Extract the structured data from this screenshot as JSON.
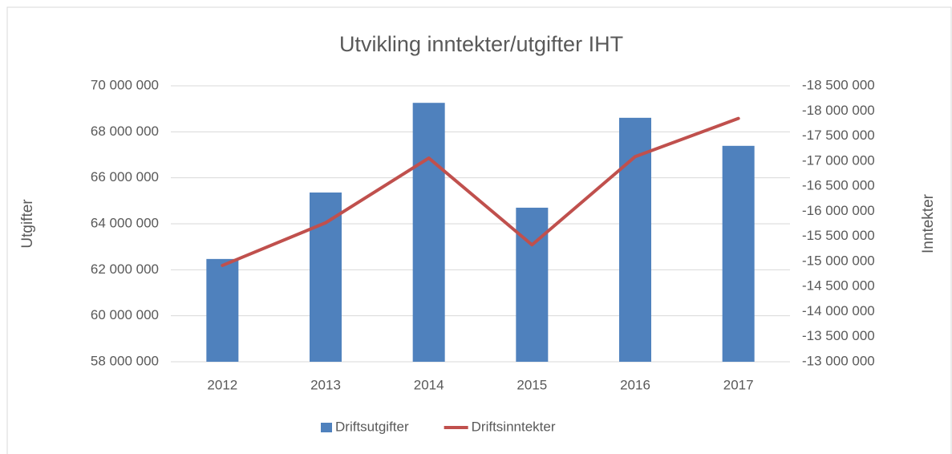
{
  "chart_data": {
    "type": "bar_line",
    "title": "Utvikling inntekter/utgifter IHT",
    "ylabel": "Utgifter",
    "y2label": "Inntekter",
    "categories": [
      "2012",
      "2013",
      "2014",
      "2015",
      "2016",
      "2017"
    ],
    "series": [
      {
        "name": "Driftsutgifter",
        "type": "bar",
        "color": "#4f81bd",
        "values": [
          62470000,
          65360000,
          69260000,
          64700000,
          68610000,
          67390000
        ]
      },
      {
        "name": "Driftsinntekter",
        "type": "line",
        "axis": "y2",
        "color": "#c0504d",
        "values": [
          -14920000,
          -15770000,
          -17060000,
          -15330000,
          -17090000,
          -17850000
        ]
      }
    ],
    "ylim": [
      58000000,
      70000000
    ],
    "yticks": [
      {
        "value": 58000000,
        "label": "58 000 000"
      },
      {
        "value": 60000000,
        "label": "60 000 000"
      },
      {
        "value": 62000000,
        "label": "62 000 000"
      },
      {
        "value": 64000000,
        "label": "64 000 000"
      },
      {
        "value": 66000000,
        "label": "66 000 000"
      },
      {
        "value": 68000000,
        "label": "68 000 000"
      },
      {
        "value": 70000000,
        "label": "70 000 000"
      }
    ],
    "y2lim": [
      -13000000,
      -18500000
    ],
    "y2ticks": [
      {
        "value": -13000000,
        "label": "-13 000 000"
      },
      {
        "value": -13500000,
        "label": "-13 500 000"
      },
      {
        "value": -14000000,
        "label": "-14 000 000"
      },
      {
        "value": -14500000,
        "label": "-14 500 000"
      },
      {
        "value": -15000000,
        "label": "-15 000 000"
      },
      {
        "value": -15500000,
        "label": "-15 500 000"
      },
      {
        "value": -16000000,
        "label": "-16 000 000"
      },
      {
        "value": -16500000,
        "label": "-16 500 000"
      },
      {
        "value": -17000000,
        "label": "-17 000 000"
      },
      {
        "value": -17500000,
        "label": "-17 500 000"
      },
      {
        "value": -18000000,
        "label": "-18 000 000"
      },
      {
        "value": -18500000,
        "label": "-18 500 000"
      }
    ],
    "grid": true,
    "legend": "bottom"
  }
}
